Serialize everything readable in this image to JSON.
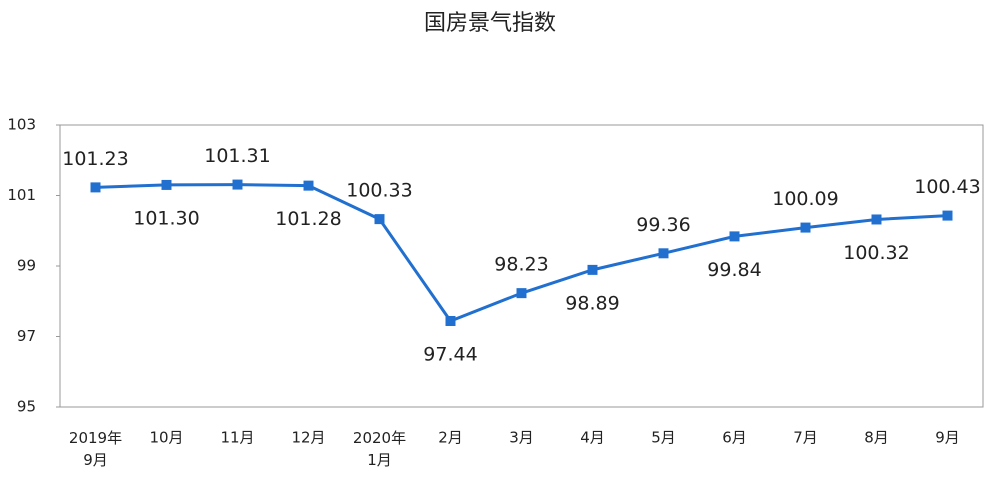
{
  "chart_data": {
    "type": "line",
    "title": "国房景气指数",
    "categories": [
      "2019年\n9月",
      "10月",
      "11月",
      "12月",
      "2020年\n1月",
      "2月",
      "3月",
      "4月",
      "5月",
      "6月",
      "7月",
      "8月",
      "9月"
    ],
    "series": [
      {
        "name": "国房景气指数",
        "color": "#2170d0",
        "values": [
          101.23,
          101.3,
          101.31,
          101.28,
          100.33,
          97.44,
          98.23,
          98.89,
          99.36,
          99.84,
          100.09,
          100.32,
          100.43
        ],
        "value_labels": [
          "101.23",
          "101.30",
          "101.31",
          "101.28",
          "100.33",
          "97.44",
          "98.23",
          "98.89",
          "99.36",
          "99.84",
          "100.09",
          "100.32",
          "100.43"
        ]
      }
    ],
    "ylim": [
      95,
      103
    ],
    "yticks": [
      95,
      97,
      99,
      101,
      103
    ],
    "grid": false
  }
}
